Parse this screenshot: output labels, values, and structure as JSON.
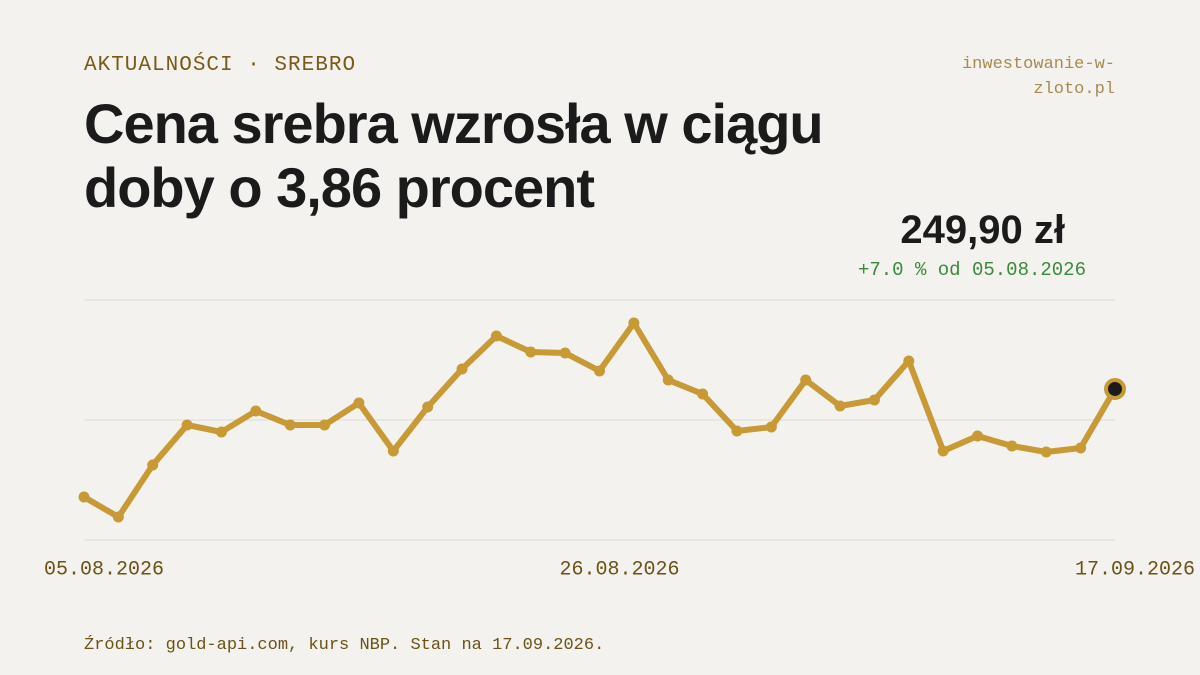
{
  "chart_data": {
    "type": "line",
    "kicker": "AKTUALNOŚCI · SREBRO",
    "brand": "inwestowanie-w-zloto.pl",
    "title": "Cena srebra wzrosła w ciągu doby o 3,86 procent",
    "price_label": "249,90 zł",
    "change_label": "+7.0 % od 05.08.2026",
    "source": "Źródło: gold-api.com, kurs NBP. Stan na 17.09.2026.",
    "categories": [
      "05.08.2026",
      null,
      null,
      null,
      null,
      null,
      null,
      null,
      null,
      null,
      null,
      null,
      null,
      null,
      null,
      "26.08.2026",
      null,
      null,
      null,
      null,
      null,
      null,
      null,
      null,
      null,
      null,
      null,
      null,
      null,
      null,
      "17.09.2026"
    ],
    "values": [
      233.55,
      230.52,
      238.39,
      244.45,
      243.39,
      246.57,
      244.45,
      244.45,
      247.78,
      240.51,
      247.17,
      252.93,
      257.92,
      255.5,
      255.35,
      252.63,
      259.89,
      251.26,
      249.14,
      243.54,
      244.15,
      251.26,
      247.33,
      248.23,
      254.14,
      240.51,
      242.78,
      241.27,
      240.36,
      240.97,
      249.9
    ],
    "color": "#c89a35",
    "ylim": [
      227.04,
      263.37
    ],
    "gridlines": [
      227.04,
      245.21,
      263.37
    ]
  }
}
